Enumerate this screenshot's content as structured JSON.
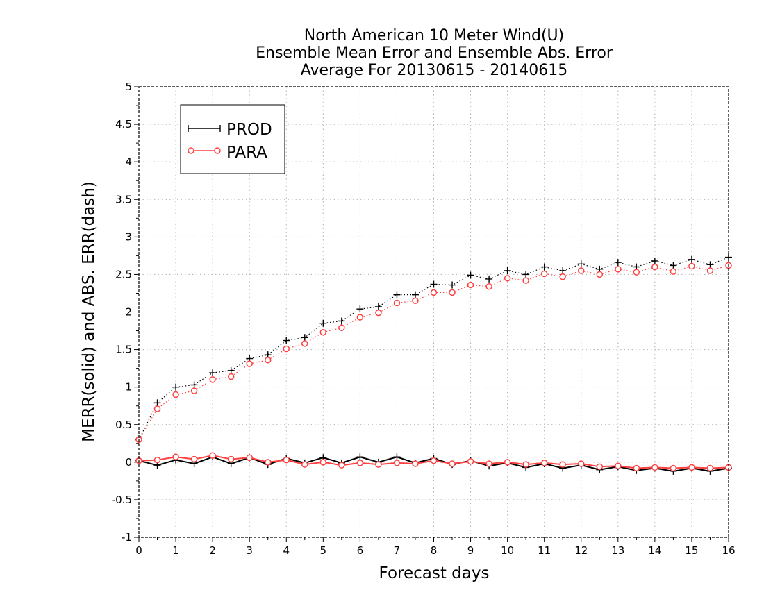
{
  "chart_data": {
    "type": "line",
    "title": [
      "North American 10 Meter Wind(U)",
      "Ensemble Mean Error and Ensemble Abs. Error",
      "Average For 20130615 - 20140615"
    ],
    "xlabel": "Forecast days",
    "ylabel": "MERR(solid) and ABS. ERR(dash)",
    "xlim": [
      0,
      16
    ],
    "ylim": [
      -1,
      5
    ],
    "xticks": [
      "0",
      "1",
      "2",
      "3",
      "4",
      "5",
      "6",
      "7",
      "8",
      "9",
      "10",
      "11",
      "12",
      "13",
      "14",
      "15",
      "16"
    ],
    "yticks": [
      "-1",
      "-0.5",
      "0",
      "0.5",
      "1",
      "1.5",
      "2",
      "2.5",
      "3",
      "3.5",
      "4",
      "4.5",
      "5"
    ],
    "grid": true,
    "legend": {
      "placement": "top-left",
      "entries": [
        "PROD",
        "PARA"
      ]
    },
    "x": [
      0,
      0.5,
      1,
      1.5,
      2,
      2.5,
      3,
      3.5,
      4,
      4.5,
      5,
      5.5,
      6,
      6.5,
      7,
      7.5,
      8,
      8.5,
      9,
      9.5,
      10,
      10.5,
      11,
      11.5,
      12,
      12.5,
      13,
      13.5,
      14,
      14.5,
      15,
      15.5,
      16
    ],
    "series": [
      {
        "name": "PROD",
        "style": "solid",
        "color": "#000000",
        "values": [
          0.02,
          -0.04,
          0.03,
          -0.02,
          0.07,
          -0.02,
          0.06,
          -0.03,
          0.05,
          -0.01,
          0.06,
          -0.01,
          0.07,
          0.0,
          0.07,
          -0.01,
          0.05,
          -0.03,
          0.02,
          -0.05,
          -0.01,
          -0.07,
          -0.02,
          -0.08,
          -0.04,
          -0.1,
          -0.06,
          -0.11,
          -0.08,
          -0.12,
          -0.08,
          -0.12,
          -0.08
        ]
      },
      {
        "name": "PROD",
        "style": "dash",
        "color": "#000000",
        "values": [
          0.3,
          0.79,
          1.0,
          1.03,
          1.19,
          1.22,
          1.38,
          1.43,
          1.62,
          1.66,
          1.85,
          1.88,
          2.04,
          2.07,
          2.23,
          2.23,
          2.37,
          2.36,
          2.49,
          2.44,
          2.55,
          2.5,
          2.6,
          2.55,
          2.64,
          2.57,
          2.66,
          2.6,
          2.68,
          2.62,
          2.7,
          2.63,
          2.73
        ]
      },
      {
        "name": "PARA",
        "style": "solid",
        "color": "#ff4040",
        "values": [
          0.02,
          0.03,
          0.07,
          0.04,
          0.09,
          0.04,
          0.06,
          0.0,
          0.03,
          -0.03,
          0.0,
          -0.04,
          -0.01,
          -0.03,
          -0.01,
          -0.02,
          0.02,
          -0.02,
          0.01,
          -0.02,
          0.0,
          -0.03,
          -0.01,
          -0.03,
          -0.02,
          -0.06,
          -0.05,
          -0.08,
          -0.07,
          -0.08,
          -0.07,
          -0.08,
          -0.07
        ]
      },
      {
        "name": "PARA",
        "style": "dash",
        "color": "#ff4040",
        "values": [
          0.3,
          0.71,
          0.9,
          0.95,
          1.1,
          1.14,
          1.31,
          1.36,
          1.51,
          1.58,
          1.73,
          1.79,
          1.93,
          1.99,
          2.12,
          2.15,
          2.26,
          2.26,
          2.36,
          2.34,
          2.45,
          2.42,
          2.51,
          2.47,
          2.55,
          2.5,
          2.57,
          2.53,
          2.6,
          2.54,
          2.61,
          2.55,
          2.62
        ]
      }
    ]
  }
}
